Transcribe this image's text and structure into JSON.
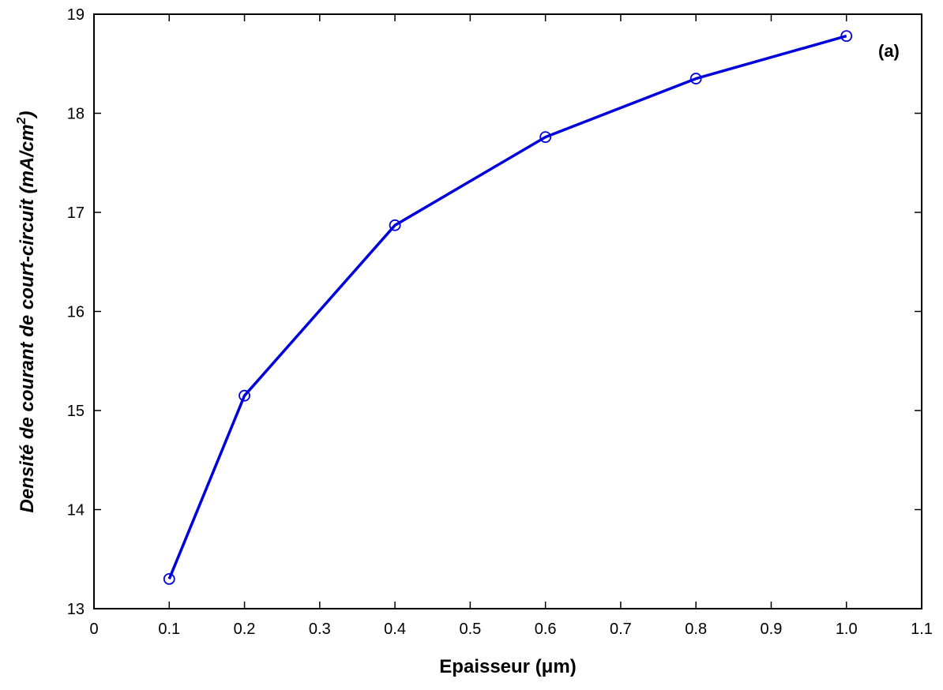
{
  "chart_data": {
    "type": "line",
    "annotation": "(a)",
    "xlabel": "Epaisseur (μm)",
    "ylabel_main": "Densité de courant de court-circuit  (mA/cm",
    "ylabel_sup": "2",
    "ylabel_end": ")",
    "xlim": [
      0,
      1.1
    ],
    "ylim": [
      13,
      19
    ],
    "x_ticks": [
      "0",
      "0.1",
      "0.2",
      "0.3",
      "0.4",
      "0.5",
      "0.6",
      "0.7",
      "0.8",
      "0.9",
      "1.0",
      "1.1"
    ],
    "y_ticks": [
      "13",
      "14",
      "15",
      "16",
      "17",
      "18",
      "19"
    ],
    "grid": false,
    "color": "#0000dd",
    "marker": "open-circle",
    "series": [
      {
        "x": [
          0.1,
          0.2,
          0.4,
          0.6,
          0.8,
          1.0
        ],
        "y": [
          13.3,
          15.15,
          16.87,
          17.76,
          18.35,
          18.78
        ]
      }
    ]
  }
}
